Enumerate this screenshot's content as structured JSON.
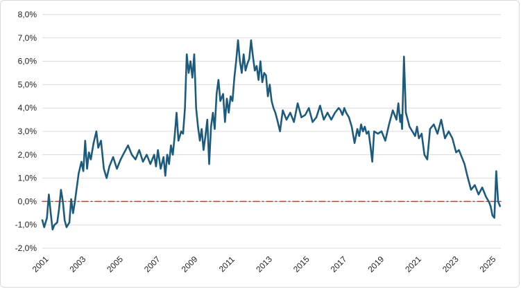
{
  "chart_data": {
    "type": "line",
    "title": "",
    "xlabel": "",
    "ylabel": "",
    "xlim": [
      2001.0,
      2025.6
    ],
    "ylim": [
      -2.0,
      8.0
    ],
    "y_unit": "%",
    "grid": "horizontal",
    "legend": "none",
    "y_ticks": [
      "-2,0%",
      "-1,0%",
      "0,0%",
      "1,0%",
      "2,0%",
      "3,0%",
      "4,0%",
      "5,0%",
      "6,0%",
      "7,0%",
      "8,0%"
    ],
    "x_ticks": [
      "2001",
      "2003",
      "2005",
      "2007",
      "2009",
      "2011",
      "2013",
      "2015",
      "2017",
      "2019",
      "2021",
      "2023",
      "2025"
    ],
    "series": [
      {
        "color": "#1c5b7e",
        "x": [
          2001.0,
          2001.1,
          2001.25,
          2001.35,
          2001.45,
          2001.55,
          2001.65,
          2001.8,
          2001.9,
          2002.0,
          2002.1,
          2002.2,
          2002.3,
          2002.45,
          2002.55,
          2002.65,
          2002.75,
          2002.85,
          2002.95,
          2003.1,
          2003.2,
          2003.3,
          2003.4,
          2003.5,
          2003.6,
          2003.75,
          2003.9,
          2004.0,
          2004.15,
          2004.3,
          2004.45,
          2004.6,
          2004.8,
          2005.0,
          2005.2,
          2005.4,
          2005.6,
          2005.8,
          2006.0,
          2006.2,
          2006.4,
          2006.6,
          2006.8,
          2007.0,
          2007.1,
          2007.2,
          2007.35,
          2007.5,
          2007.6,
          2007.7,
          2007.8,
          2007.9,
          2008.0,
          2008.1,
          2008.2,
          2008.3,
          2008.45,
          2008.55,
          2008.65,
          2008.75,
          2008.85,
          2008.95,
          2009.05,
          2009.15,
          2009.25,
          2009.35,
          2009.45,
          2009.55,
          2009.65,
          2009.75,
          2009.85,
          2009.95,
          2010.05,
          2010.15,
          2010.25,
          2010.35,
          2010.45,
          2010.55,
          2010.7,
          2010.8,
          2010.9,
          2011.0,
          2011.1,
          2011.2,
          2011.3,
          2011.4,
          2011.5,
          2011.6,
          2011.7,
          2011.8,
          2011.9,
          2012.0,
          2012.1,
          2012.2,
          2012.3,
          2012.4,
          2012.5,
          2012.6,
          2012.7,
          2012.8,
          2012.9,
          2013.0,
          2013.1,
          2013.2,
          2013.3,
          2013.4,
          2013.5,
          2013.6,
          2013.75,
          2013.9,
          2014.1,
          2014.3,
          2014.5,
          2014.7,
          2014.9,
          2015.1,
          2015.3,
          2015.5,
          2015.7,
          2015.9,
          2016.1,
          2016.3,
          2016.5,
          2016.7,
          2016.9,
          2017.0,
          2017.1,
          2017.2,
          2017.3,
          2017.45,
          2017.6,
          2017.75,
          2017.9,
          2018.0,
          2018.1,
          2018.2,
          2018.3,
          2018.4,
          2018.5,
          2018.6,
          2018.7,
          2018.8,
          2019.0,
          2019.2,
          2019.4,
          2019.6,
          2019.8,
          2020.0,
          2020.1,
          2020.2,
          2020.25,
          2020.3,
          2020.4,
          2020.5,
          2020.6,
          2020.7,
          2020.85,
          2021.0,
          2021.1,
          2021.2,
          2021.35,
          2021.5,
          2021.65,
          2021.8,
          2022.0,
          2022.2,
          2022.4,
          2022.6,
          2022.8,
          2023.0,
          2023.2,
          2023.35,
          2023.5,
          2023.65,
          2023.8,
          2024.0,
          2024.2,
          2024.4,
          2024.6,
          2024.8,
          2024.95,
          2025.05,
          2025.15,
          2025.25,
          2025.35,
          2025.45,
          2025.55
        ],
        "y": [
          -0.8,
          -1.1,
          -0.7,
          0.3,
          -0.5,
          -1.2,
          -1.0,
          -0.9,
          -0.3,
          0.5,
          0.0,
          -0.8,
          -1.1,
          -0.9,
          0.1,
          -0.5,
          0.0,
          0.6,
          1.2,
          1.7,
          1.3,
          2.6,
          1.4,
          2.1,
          1.8,
          2.5,
          3.0,
          2.3,
          2.6,
          1.4,
          1.0,
          1.5,
          1.9,
          1.4,
          1.8,
          2.1,
          2.4,
          2.0,
          1.8,
          2.2,
          1.7,
          2.0,
          1.6,
          2.0,
          1.5,
          2.2,
          1.4,
          1.9,
          1.1,
          2.0,
          1.6,
          2.4,
          2.0,
          2.8,
          3.8,
          2.6,
          3.0,
          2.9,
          4.0,
          6.3,
          5.5,
          6.0,
          5.3,
          6.3,
          4.0,
          3.2,
          2.6,
          3.1,
          2.2,
          2.8,
          3.5,
          1.6,
          3.2,
          3.8,
          3.1,
          4.6,
          5.2,
          4.3,
          4.6,
          3.4,
          4.4,
          3.8,
          4.5,
          4.3,
          5.3,
          6.0,
          6.9,
          6.0,
          5.5,
          6.3,
          5.6,
          5.9,
          6.1,
          6.9,
          6.2,
          5.6,
          5.8,
          5.2,
          6.0,
          5.1,
          5.5,
          5.4,
          4.5,
          5.0,
          4.3,
          4.0,
          3.8,
          3.5,
          3.0,
          3.9,
          3.5,
          3.8,
          3.4,
          4.2,
          3.6,
          3.7,
          4.0,
          3.4,
          3.6,
          4.1,
          3.5,
          3.8,
          3.5,
          3.8,
          4.0,
          3.9,
          3.7,
          4.0,
          3.8,
          3.6,
          3.2,
          2.5,
          3.1,
          2.8,
          3.3,
          3.0,
          3.2,
          2.9,
          3.0,
          2.4,
          1.7,
          3.0,
          2.9,
          3.0,
          2.6,
          3.3,
          3.9,
          3.5,
          4.2,
          3.4,
          3.7,
          3.1,
          6.2,
          3.8,
          3.5,
          3.2,
          3.0,
          2.8,
          3.2,
          2.7,
          2.9,
          2.0,
          1.8,
          3.1,
          3.3,
          2.9,
          3.5,
          2.7,
          3.0,
          2.7,
          2.1,
          2.2,
          1.9,
          1.6,
          1.1,
          0.5,
          0.7,
          0.3,
          0.6,
          0.2,
          0.0,
          -0.2,
          -0.6,
          -0.7,
          1.3,
          0.0,
          -0.2
        ]
      },
      {
        "color": "#e03030",
        "style": "dash-dot",
        "x": [
          2001.0,
          2025.6
        ],
        "y": [
          0.0,
          0.0
        ]
      }
    ]
  }
}
